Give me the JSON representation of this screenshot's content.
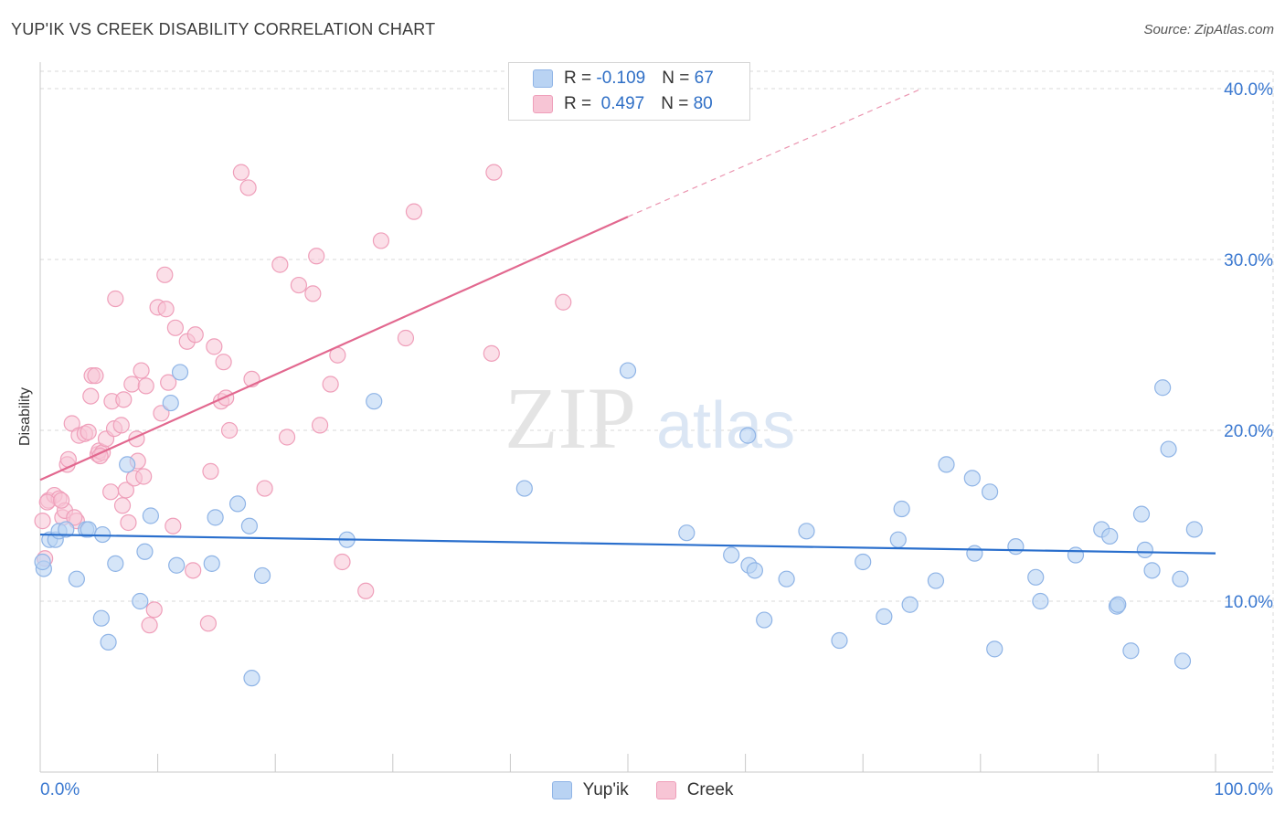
{
  "title": "YUP'IK VS CREEK DISABILITY CORRELATION CHART",
  "source": "Source: ZipAtlas.com",
  "watermark": {
    "part1": "ZIP",
    "part2": "atlas"
  },
  "colors": {
    "blue_fill": "#b9d3f3",
    "blue_stroke": "#8fb4e6",
    "blue_line": "#2a6fcd",
    "pink_fill": "#f7c5d5",
    "pink_stroke": "#ef9fba",
    "pink_line": "#e2688f",
    "axis_label": "#3a78d0",
    "grid": "#d8d8d8"
  },
  "legend": {
    "rows": [
      {
        "r_label": "R = ",
        "r_value": "-0.109",
        "n_label": "N = ",
        "n_value": "67"
      },
      {
        "r_label": "R = ",
        "r_value": " 0.497",
        "n_label": "N = ",
        "n_value": "80"
      }
    ]
  },
  "bottom_legend": {
    "series1": "Yup'ik",
    "series2": "Creek"
  },
  "chart_data": {
    "type": "scatter",
    "title": "YUP'IK VS CREEK DISABILITY CORRELATION CHART",
    "xlabel": "",
    "ylabel": "Disability",
    "xlim": [
      0,
      100
    ],
    "ylim": [
      0,
      40
    ],
    "x_tick_labels": [
      "0.0%",
      "100.0%"
    ],
    "y_ticks": [
      10,
      20,
      30,
      40
    ],
    "y_tick_labels": [
      "10.0%",
      "20.0%",
      "30.0%",
      "40.0%"
    ],
    "grid": true,
    "series": [
      {
        "name": "Yup'ik",
        "r": -0.109,
        "n": 67,
        "trend": {
          "x0": 0,
          "y0": 13.9,
          "x1": 100,
          "y1": 12.8
        },
        "points": [
          [
            0.3,
            11.9
          ],
          [
            0.8,
            13.6
          ],
          [
            1.3,
            13.6
          ],
          [
            1.6,
            14.1
          ],
          [
            2.2,
            14.2
          ],
          [
            3.1,
            11.3
          ],
          [
            3.9,
            14.2
          ],
          [
            4.1,
            14.2
          ],
          [
            5.2,
            9.0
          ],
          [
            5.3,
            13.9
          ],
          [
            5.8,
            7.6
          ],
          [
            6.4,
            12.2
          ],
          [
            7.4,
            18.0
          ],
          [
            8.5,
            10.0
          ],
          [
            8.9,
            12.9
          ],
          [
            9.4,
            15.0
          ],
          [
            11.1,
            21.6
          ],
          [
            11.6,
            12.1
          ],
          [
            11.9,
            23.4
          ],
          [
            14.6,
            12.2
          ],
          [
            14.9,
            14.9
          ],
          [
            16.8,
            15.7
          ],
          [
            17.8,
            14.4
          ],
          [
            18.0,
            5.5
          ],
          [
            18.9,
            11.5
          ],
          [
            26.1,
            13.6
          ],
          [
            28.4,
            21.7
          ],
          [
            41.2,
            16.6
          ],
          [
            50.0,
            23.5
          ],
          [
            55.0,
            14.0
          ],
          [
            58.8,
            12.7
          ],
          [
            60.2,
            19.7
          ],
          [
            60.3,
            12.1
          ],
          [
            60.8,
            11.8
          ],
          [
            61.6,
            8.9
          ],
          [
            63.5,
            11.3
          ],
          [
            65.2,
            14.1
          ],
          [
            68.0,
            7.7
          ],
          [
            70.0,
            12.3
          ],
          [
            71.8,
            9.1
          ],
          [
            73.0,
            13.6
          ],
          [
            73.3,
            15.4
          ],
          [
            74.0,
            9.8
          ],
          [
            76.2,
            11.2
          ],
          [
            77.1,
            18.0
          ],
          [
            79.3,
            17.2
          ],
          [
            79.5,
            12.8
          ],
          [
            80.8,
            16.4
          ],
          [
            81.2,
            7.2
          ],
          [
            83.0,
            13.2
          ],
          [
            84.7,
            11.4
          ],
          [
            85.1,
            10.0
          ],
          [
            88.1,
            12.7
          ],
          [
            90.3,
            14.2
          ],
          [
            91.0,
            13.8
          ],
          [
            91.6,
            9.7
          ],
          [
            91.7,
            9.8
          ],
          [
            92.8,
            7.1
          ],
          [
            93.7,
            15.1
          ],
          [
            94.0,
            13.0
          ],
          [
            94.6,
            11.8
          ],
          [
            95.5,
            22.5
          ],
          [
            96.0,
            18.9
          ],
          [
            97.0,
            11.3
          ],
          [
            97.2,
            6.5
          ],
          [
            98.2,
            14.2
          ],
          [
            0.2,
            12.3
          ]
        ]
      },
      {
        "name": "Creek",
        "r": 0.497,
        "n": 80,
        "trend": {
          "x0": 0,
          "y0": 17.1,
          "x1": 50,
          "y1": 32.5,
          "dash_x1": 75,
          "dash_y1": 40.0
        },
        "points": [
          [
            0.2,
            14.7
          ],
          [
            0.4,
            12.5
          ],
          [
            0.7,
            15.9
          ],
          [
            1.2,
            16.2
          ],
          [
            1.6,
            16.0
          ],
          [
            1.9,
            14.9
          ],
          [
            2.1,
            15.3
          ],
          [
            2.3,
            18.0
          ],
          [
            2.4,
            18.3
          ],
          [
            2.7,
            20.4
          ],
          [
            3.1,
            14.7
          ],
          [
            3.3,
            19.7
          ],
          [
            3.8,
            19.8
          ],
          [
            4.1,
            19.9
          ],
          [
            4.3,
            22.0
          ],
          [
            4.4,
            23.2
          ],
          [
            4.7,
            23.2
          ],
          [
            4.9,
            18.6
          ],
          [
            5.0,
            18.8
          ],
          [
            5.3,
            18.7
          ],
          [
            5.6,
            19.5
          ],
          [
            6.0,
            16.4
          ],
          [
            6.1,
            21.7
          ],
          [
            6.3,
            20.1
          ],
          [
            6.4,
            27.7
          ],
          [
            6.9,
            20.3
          ],
          [
            7.0,
            15.6
          ],
          [
            7.1,
            21.8
          ],
          [
            7.3,
            16.5
          ],
          [
            7.5,
            14.6
          ],
          [
            7.8,
            22.7
          ],
          [
            8.0,
            17.2
          ],
          [
            8.2,
            19.5
          ],
          [
            8.3,
            18.2
          ],
          [
            8.6,
            23.5
          ],
          [
            8.8,
            17.3
          ],
          [
            9.0,
            22.6
          ],
          [
            9.3,
            8.6
          ],
          [
            9.7,
            9.5
          ],
          [
            10.0,
            27.2
          ],
          [
            10.3,
            21.0
          ],
          [
            10.6,
            29.1
          ],
          [
            10.7,
            27.1
          ],
          [
            10.9,
            22.8
          ],
          [
            11.3,
            14.4
          ],
          [
            11.5,
            26.0
          ],
          [
            12.5,
            25.2
          ],
          [
            13.0,
            11.8
          ],
          [
            13.2,
            25.6
          ],
          [
            14.3,
            8.7
          ],
          [
            14.5,
            17.6
          ],
          [
            14.8,
            24.9
          ],
          [
            15.4,
            21.7
          ],
          [
            15.6,
            24.0
          ],
          [
            15.8,
            21.9
          ],
          [
            16.1,
            20.0
          ],
          [
            17.1,
            35.1
          ],
          [
            17.7,
            34.2
          ],
          [
            18.0,
            23.0
          ],
          [
            19.1,
            16.6
          ],
          [
            20.4,
            29.7
          ],
          [
            21.0,
            19.6
          ],
          [
            22.0,
            28.5
          ],
          [
            23.2,
            28.0
          ],
          [
            23.5,
            30.2
          ],
          [
            23.8,
            20.3
          ],
          [
            24.7,
            22.7
          ],
          [
            25.3,
            24.4
          ],
          [
            25.7,
            12.3
          ],
          [
            27.7,
            10.6
          ],
          [
            29.0,
            31.1
          ],
          [
            31.1,
            25.4
          ],
          [
            31.8,
            32.8
          ],
          [
            38.4,
            24.5
          ],
          [
            38.6,
            35.1
          ],
          [
            44.5,
            27.5
          ],
          [
            0.6,
            15.8
          ],
          [
            2.9,
            14.9
          ],
          [
            5.1,
            18.5
          ],
          [
            1.8,
            15.9
          ]
        ]
      }
    ]
  }
}
